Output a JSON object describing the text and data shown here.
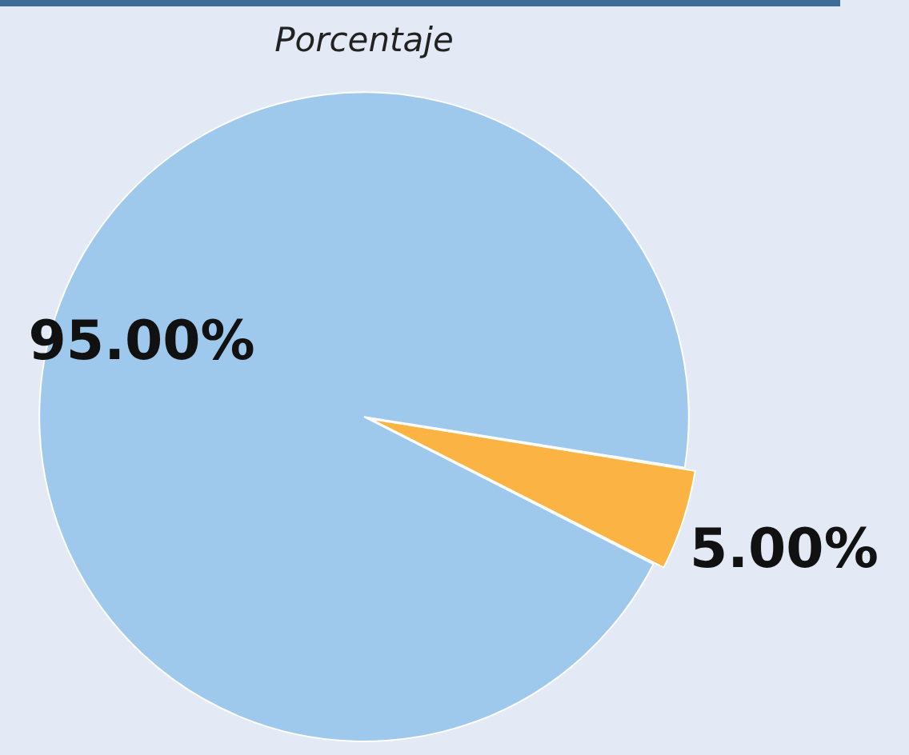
{
  "chart_data": {
    "type": "pie",
    "title": "Porcentaje",
    "categories": [
      null,
      null
    ],
    "values": [
      95,
      5
    ],
    "colors": [
      "#9fc9ec",
      "#fbb443"
    ],
    "value_labels": [
      "95.00%",
      "5.00%"
    ],
    "legend": false
  }
}
